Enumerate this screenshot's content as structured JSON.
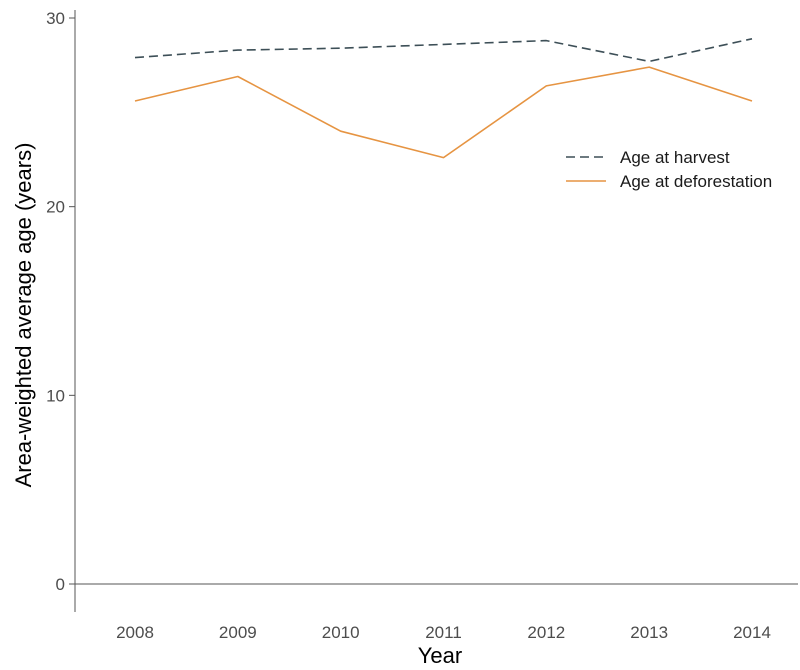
{
  "chart_data": {
    "type": "line",
    "title": "",
    "xlabel": "Year",
    "ylabel": "Area-weighted average age (years)",
    "x": [
      "2008",
      "2009",
      "2010",
      "2011",
      "2012",
      "2013",
      "2014"
    ],
    "ylim": [
      0,
      30
    ],
    "y_ticks": [
      "0",
      "10",
      "20",
      "30"
    ],
    "grid": false,
    "legend_position": "right",
    "series": [
      {
        "name": "Age at harvest",
        "values": [
          27.9,
          28.3,
          28.4,
          28.6,
          28.8,
          27.7,
          28.9
        ],
        "color": "#3d4f57",
        "line_style": "dashed"
      },
      {
        "name": "Age at deforestation",
        "values": [
          25.6,
          26.9,
          24.0,
          22.6,
          26.4,
          27.4,
          25.6
        ],
        "color": "#e69442",
        "line_style": "solid"
      }
    ]
  }
}
